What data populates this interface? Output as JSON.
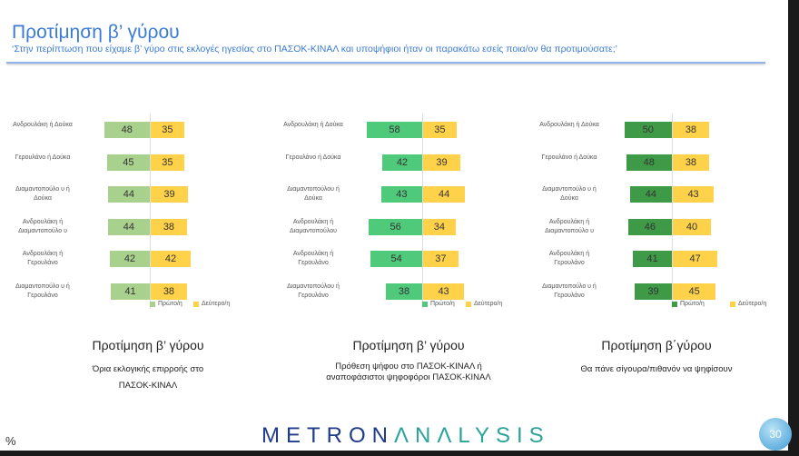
{
  "header": {
    "title": "Προτίμηση β’ γύρου",
    "subtitle": "‘Στην περίπτωση που είχαμε β’ γύρο στις εκλογές ηγεσίας στο ΠΑΣΟΚ-ΚΙΝΑΛ και υποψήφιοι ήταν οι παρακάτω εσείς ποια/ον θα προτιμούσατε;’"
  },
  "footer": {
    "unit": "%",
    "logo_part1": "METRON",
    "logo_part2": "ΛNΛLYSIS",
    "page_number": "30"
  },
  "colors": {
    "yellow": "#ffd24a"
  },
  "chart_data": [
    {
      "type": "bar",
      "orientation": "horizontal-diverging",
      "title": "Προτίμηση β’ γύρου",
      "description": "Όρια εκλογικής επιρροής στο ΠΑΣΟΚ-ΚΙΝΑΛ",
      "color_first": "#a9d18e",
      "categories": [
        "Ανδρουλάκη ή Δούκα",
        "Γερουλάνο ή Δούκα",
        "Διαμαντοπούλο υ ή Δούκα",
        "Ανδρουλάκη ή Διαμαντοπούλο υ",
        "Ανδρουλάκη ή Γερουλάνο",
        "Διαμαντοπούλο υ ή Γερουλάνο"
      ],
      "series": [
        {
          "name": "Πρώτο/η",
          "values": [
            48,
            45,
            44,
            44,
            42,
            41
          ]
        },
        {
          "name": "Δεύτερο/η",
          "values": [
            35,
            35,
            39,
            38,
            42,
            38
          ]
        }
      ]
    },
    {
      "type": "bar",
      "orientation": "horizontal-diverging",
      "title": "Προτίμηση β’ γύρου",
      "description": "Πρόθεση ψήφου στο ΠΑΣΟΚ-ΚΙΝΑΛ ή αναποφάσιστοι ψηφοφόροι ΠΑΣΟΚ-ΚΙΝΑΛ",
      "color_first": "#4fc97a",
      "categories": [
        "Ανδρουλάκη ή Δούκα",
        "Γερουλάνο ή Δούκα",
        "Διαμαντοπούλου ή Δούκα",
        "Ανδρουλάκη ή Διαμαντοπούλου",
        "Ανδρουλάκη ή Γερουλάνο",
        "Διαμαντοπούλου ή Γερουλάνο"
      ],
      "series": [
        {
          "name": "Πρώτο/η",
          "values": [
            58,
            42,
            43,
            56,
            54,
            38
          ]
        },
        {
          "name": "Δεύτερο/η",
          "values": [
            35,
            39,
            44,
            34,
            37,
            43
          ]
        }
      ]
    },
    {
      "type": "bar",
      "orientation": "horizontal-diverging",
      "title": "Προτίμηση β΄γύρου",
      "description": "Θα πάνε σίγουρα/πιθανόν να ψηφίσουν",
      "color_first": "#3f9a48",
      "categories": [
        "Ανδρουλάκη ή Δούκα",
        "Γερουλάνο ή Δούκα",
        "Διαμαντοπούλο υ ή Δούκα",
        "Ανδρουλάκη ή Διαμαντοπούλο υ",
        "Ανδρουλάκη ή Γερουλάνο",
        "Διαμαντοπούλο υ ή Γερουλάνο"
      ],
      "series": [
        {
          "name": "Πρώτο/η",
          "values": [
            50,
            48,
            44,
            46,
            41,
            39
          ]
        },
        {
          "name": "Δεύτερο/η",
          "values": [
            38,
            38,
            43,
            40,
            47,
            45
          ]
        }
      ]
    }
  ]
}
